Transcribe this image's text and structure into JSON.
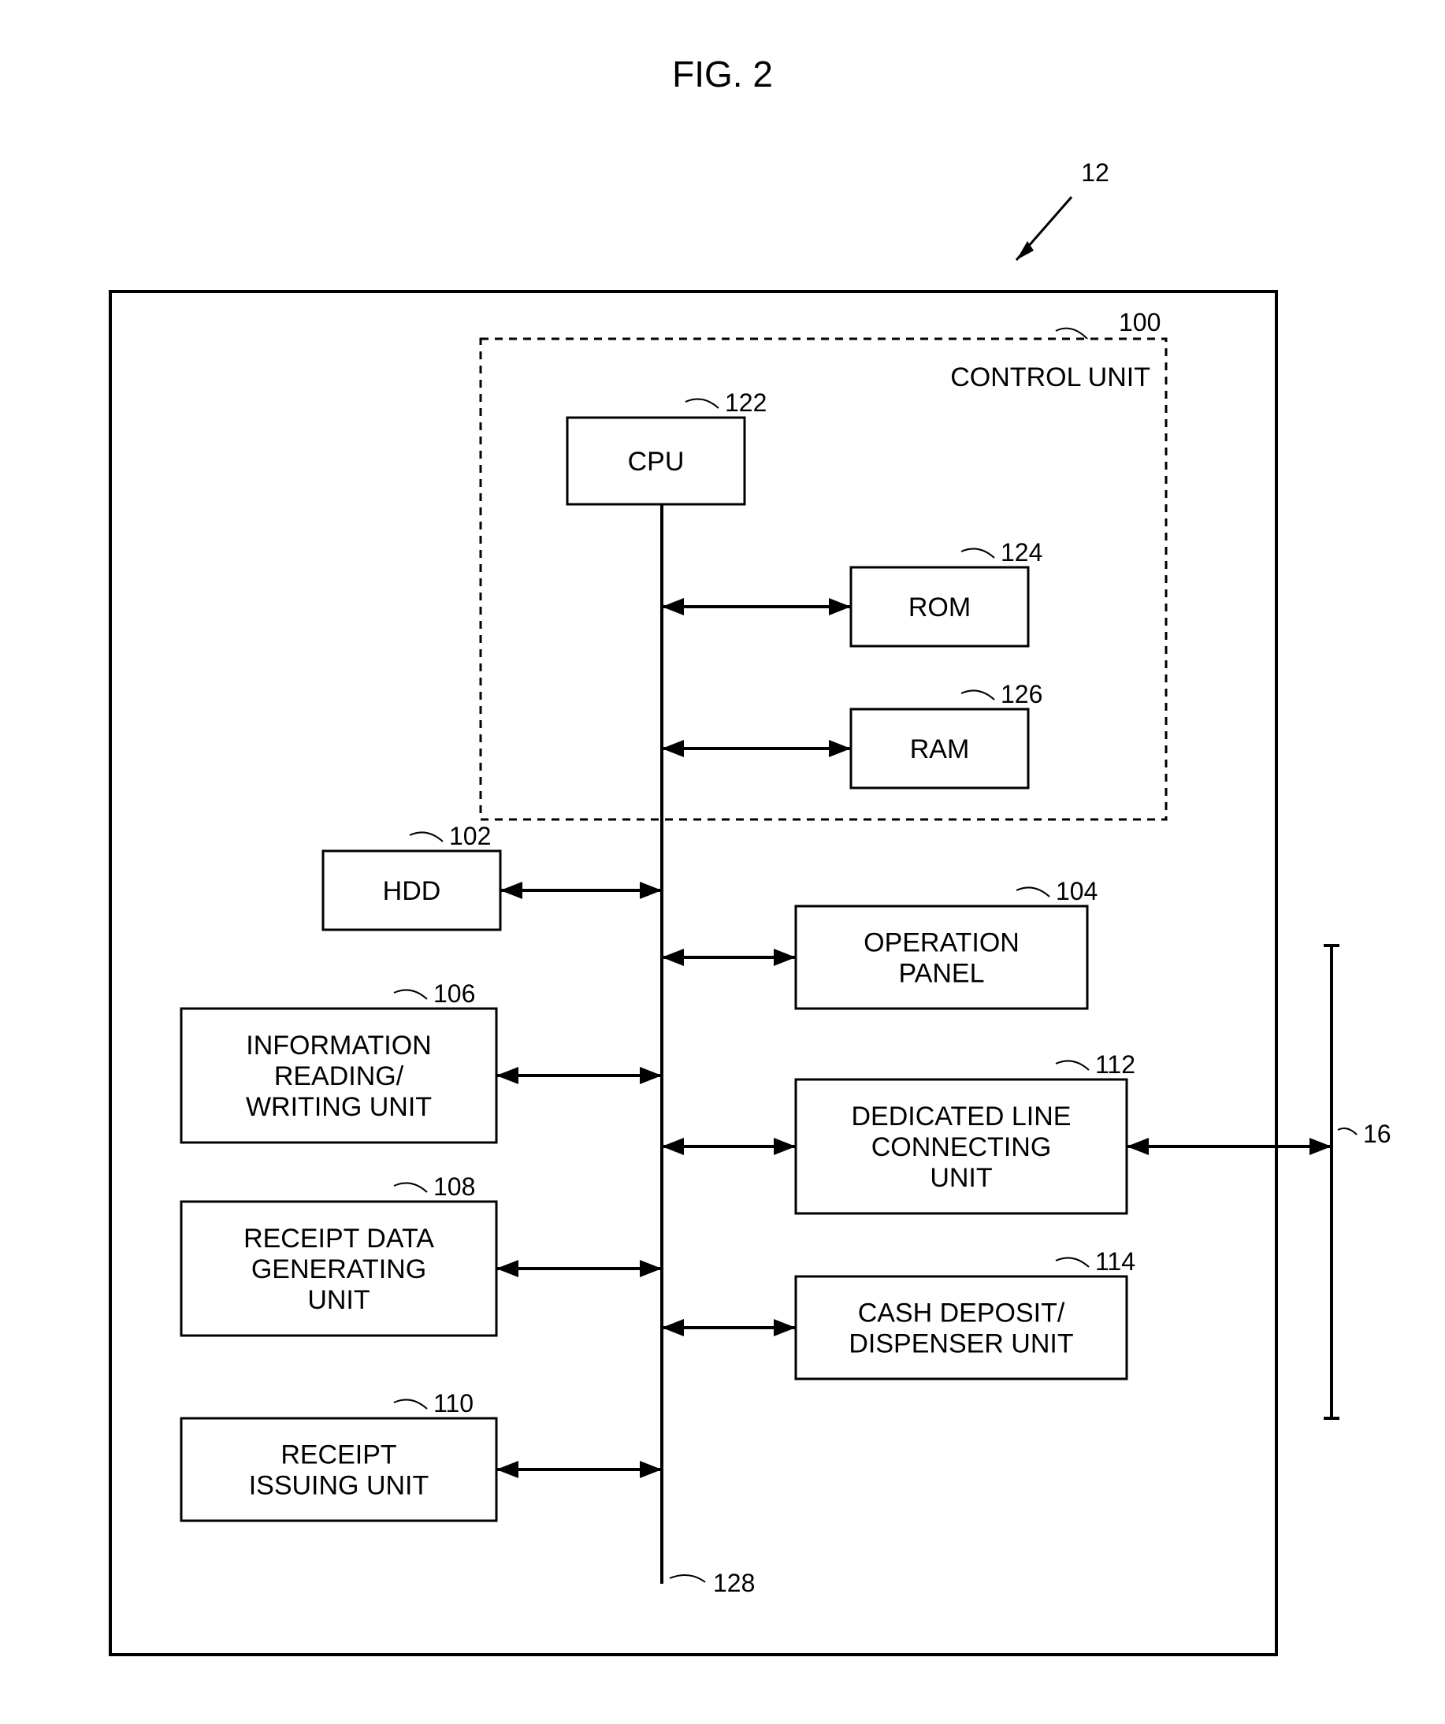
{
  "figure": {
    "title": "FIG. 2",
    "title_fontsize": 46,
    "ref_main": "12",
    "ref_ext": "16",
    "background_color": "#ffffff",
    "stroke_color": "#000000",
    "outer_stroke": 4,
    "box_stroke": 3,
    "bus_stroke": 4,
    "dash_pattern": "10 8",
    "label_fontsize": 34,
    "refnum_fontsize": 32,
    "arrow_len": 28,
    "arrow_w": 11
  },
  "control_unit": {
    "label": "CONTROL UNIT",
    "ref": "100"
  },
  "bus_ref": "128",
  "nodes": {
    "cpu": {
      "label": "CPU",
      "ref": "122"
    },
    "rom": {
      "label": "ROM",
      "ref": "124"
    },
    "ram": {
      "label": "RAM",
      "ref": "126"
    },
    "hdd": {
      "label": "HDD",
      "ref": "102"
    },
    "op": {
      "label_lines": [
        "OPERATION",
        "PANEL"
      ],
      "ref": "104"
    },
    "info": {
      "label_lines": [
        "INFORMATION",
        "READING/",
        "WRITING UNIT"
      ],
      "ref": "106"
    },
    "dlc": {
      "label_lines": [
        "DEDICATED LINE",
        "CONNECTING",
        "UNIT"
      ],
      "ref": "112"
    },
    "rdg": {
      "label_lines": [
        "RECEIPT DATA",
        "GENERATING",
        "UNIT"
      ],
      "ref": "108"
    },
    "cash": {
      "label_lines": [
        "CASH DEPOSIT/",
        "DISPENSER UNIT"
      ],
      "ref": "114"
    },
    "riu": {
      "label_lines": [
        "RECEIPT",
        "ISSUING UNIT"
      ],
      "ref": "110"
    }
  }
}
